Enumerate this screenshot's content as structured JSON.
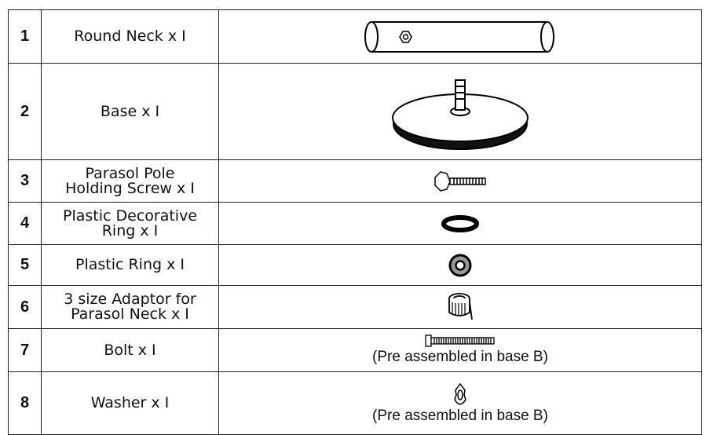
{
  "table": {
    "rows": [
      {
        "number": "1",
        "name": [
          "Round Neck x I"
        ]
      },
      {
        "number": "2",
        "name": [
          "Base x I"
        ]
      },
      {
        "number": "3",
        "name": [
          "Parasol Pole",
          "Holding Screw x I"
        ]
      },
      {
        "number": "4",
        "name": [
          "Plastic Decorative",
          "Ring x I"
        ]
      },
      {
        "number": "5",
        "name": [
          "Plastic Ring x I"
        ]
      },
      {
        "number": "6",
        "name": [
          "3 size Adaptor for",
          "Parasol Neck x I"
        ]
      },
      {
        "number": "7",
        "name": [
          "Bolt x I"
        ],
        "note": "(Pre assembled in base B)"
      },
      {
        "number": "8",
        "name": [
          "Washer x I"
        ],
        "note": "(Pre assembled in base B)"
      }
    ]
  }
}
